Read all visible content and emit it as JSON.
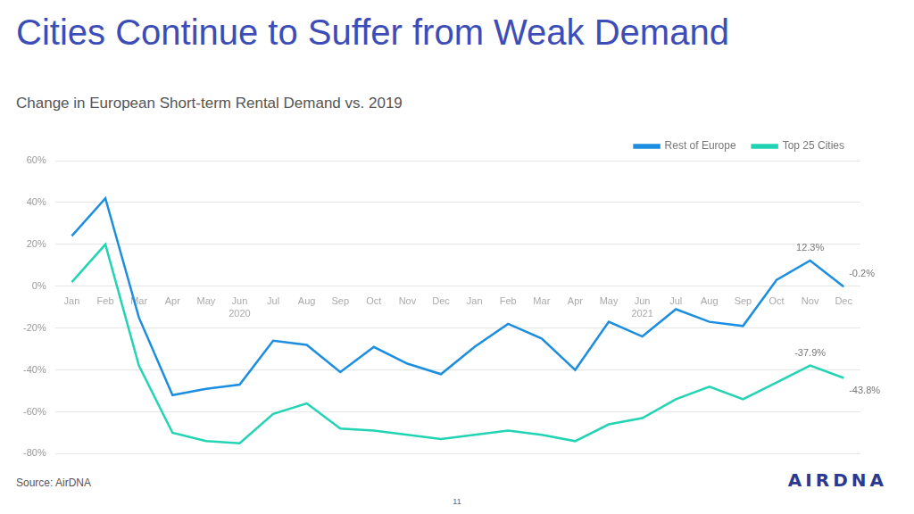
{
  "chart_data": {
    "type": "line",
    "title": "Cities Continue to Suffer from Weak Demand",
    "subtitle": "Change in European Short-term Rental Demand vs. 2019",
    "source": "Source: AirDNA",
    "page_number": "11",
    "logo": "AIRDNA",
    "categories": [
      "Jan",
      "Feb",
      "Mar",
      "Apr",
      "May",
      [
        "Jun",
        "2020"
      ],
      "Jul",
      "Aug",
      "Sep",
      "Oct",
      "Nov",
      "Dec",
      "Jan",
      "Feb",
      "Mar",
      "Apr",
      "May",
      [
        "Jun",
        "2021"
      ],
      "Jul",
      "Aug",
      "Sep",
      "Oct",
      "Nov",
      "Dec"
    ],
    "series": [
      {
        "name": "Rest of Europe",
        "color": "#1c8ee0",
        "values": [
          24,
          42,
          -15,
          -52,
          -49,
          -47,
          -26,
          -28,
          -41,
          -29,
          -37,
          -42,
          -29,
          -18,
          -25,
          -40,
          -17,
          -24,
          -11,
          -17,
          -19,
          3,
          12.3,
          -0.2
        ],
        "value_labels": [
          null,
          null,
          null,
          null,
          null,
          null,
          null,
          null,
          null,
          null,
          null,
          null,
          null,
          null,
          null,
          null,
          null,
          null,
          null,
          null,
          null,
          null,
          "12.3%",
          "-0.2%"
        ]
      },
      {
        "name": "Top 25 Cities",
        "color": "#22d3b4",
        "values": [
          2,
          20,
          -38,
          -70,
          -74,
          -75,
          -61,
          -56,
          -68,
          -69,
          -71,
          -73,
          -71,
          -69,
          -71,
          -74,
          -66,
          -63,
          -54,
          -48,
          -54,
          -46,
          -37.9,
          -43.8
        ],
        "value_labels": [
          null,
          null,
          null,
          null,
          null,
          null,
          null,
          null,
          null,
          null,
          null,
          null,
          null,
          null,
          null,
          null,
          null,
          null,
          null,
          null,
          null,
          null,
          "-37.9%",
          "-43.8%"
        ]
      }
    ],
    "ylim": [
      -80,
      60
    ],
    "yticks": [
      {
        "value": -80,
        "label": "-80%"
      },
      {
        "value": -60,
        "label": "-60%"
      },
      {
        "value": -40,
        "label": "-40%"
      },
      {
        "value": -20,
        "label": "-20%"
      },
      {
        "value": 0,
        "label": "0%"
      },
      {
        "value": 20,
        "label": "20%"
      },
      {
        "value": 40,
        "label": "40%"
      },
      {
        "value": 60,
        "label": "60%"
      }
    ],
    "grid": true,
    "legend": "top-right"
  }
}
